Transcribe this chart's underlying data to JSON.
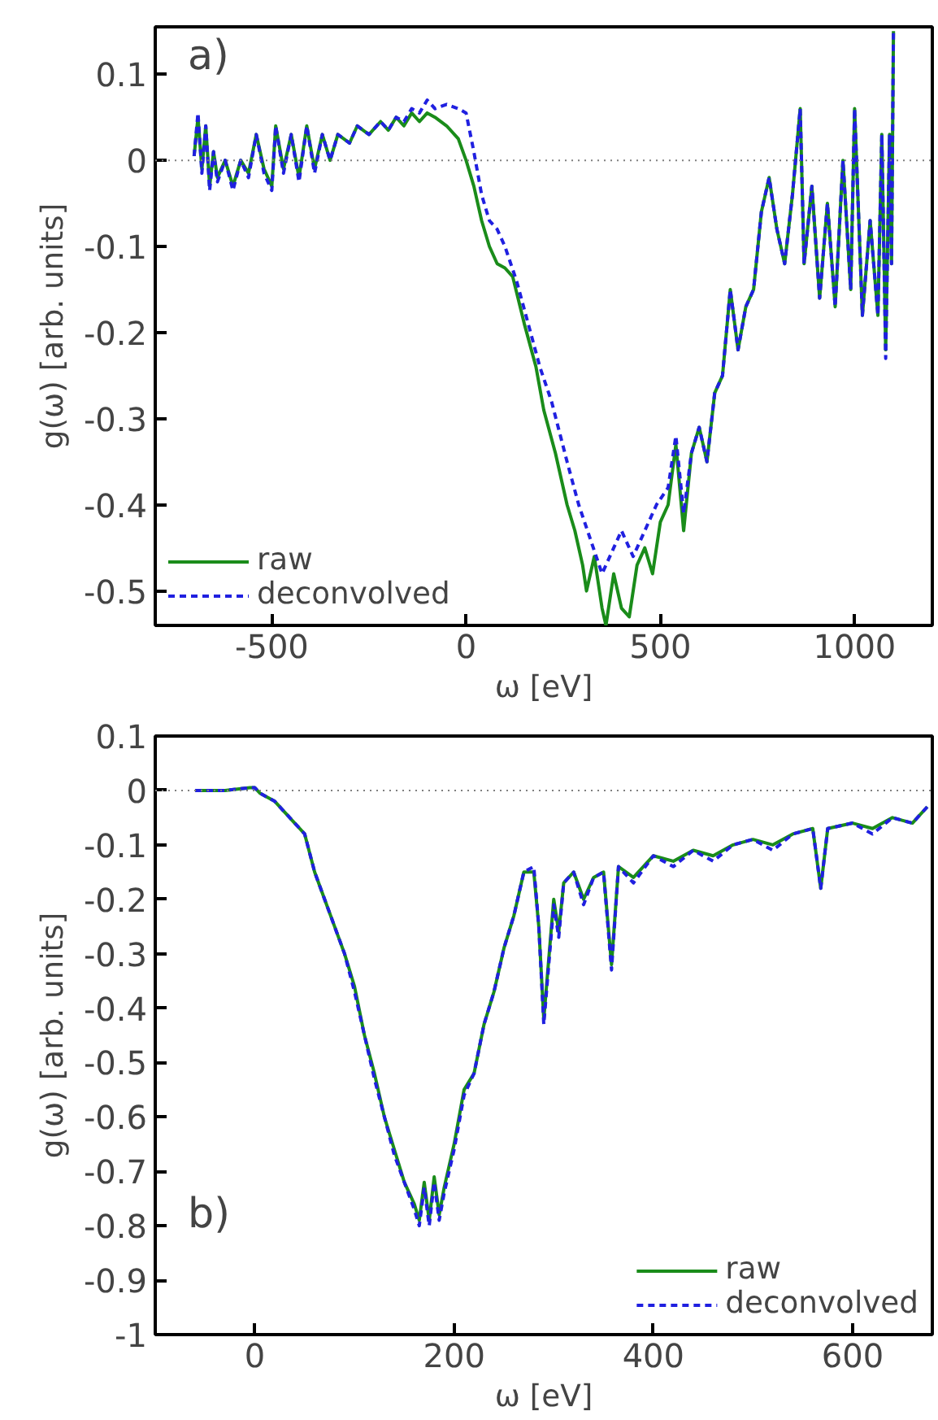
{
  "chart_data": [
    {
      "type": "line",
      "xlabel": "ω [eV]",
      "ylabel": "g(ω) [arb. units]",
      "annotations": [
        "a)"
      ],
      "xlim": [
        -800,
        1200
      ],
      "ylim": [
        -0.54,
        0.155
      ],
      "xticks": [
        -500,
        0,
        500,
        1000
      ],
      "yticks": [
        -0.5,
        -0.4,
        -0.3,
        -0.2,
        -0.1,
        0,
        0.1
      ],
      "grid": false,
      "legend": "bottom left",
      "marker": "none",
      "ref_lines": [
        {
          "axis": "y",
          "value": 0,
          "label": null,
          "color": "#808080",
          "line_style": "dotted"
        }
      ],
      "series": [
        {
          "name": "raw",
          "color": "#1a8c1a",
          "line_style": "solid",
          "x": [
            -700,
            -690,
            -680,
            -670,
            -660,
            -650,
            -640,
            -620,
            -600,
            -580,
            -560,
            -540,
            -520,
            -500,
            -490,
            -470,
            -450,
            -430,
            -410,
            -390,
            -370,
            -350,
            -330,
            -300,
            -280,
            -250,
            -220,
            -200,
            -180,
            -160,
            -140,
            -120,
            -100,
            -80,
            -50,
            -20,
            0,
            20,
            40,
            60,
            80,
            100,
            120,
            150,
            180,
            200,
            230,
            260,
            280,
            300,
            310,
            330,
            350,
            360,
            380,
            400,
            420,
            440,
            460,
            480,
            500,
            520,
            540,
            560,
            580,
            600,
            620,
            640,
            660,
            680,
            700,
            720,
            740,
            760,
            780,
            800,
            820,
            840,
            860,
            870,
            890,
            910,
            930,
            950,
            970,
            990,
            1000,
            1020,
            1040,
            1060,
            1070,
            1080,
            1090,
            1095,
            1100
          ],
          "values": [
            0.005,
            0.05,
            -0.01,
            0.04,
            -0.03,
            0.01,
            -0.02,
            0.0,
            -0.03,
            0.0,
            -0.015,
            0.03,
            -0.01,
            -0.03,
            0.04,
            -0.01,
            0.03,
            -0.02,
            0.04,
            -0.01,
            0.03,
            0.0,
            0.03,
            0.02,
            0.04,
            0.03,
            0.045,
            0.035,
            0.05,
            0.04,
            0.055,
            0.045,
            0.055,
            0.05,
            0.04,
            0.025,
            0.0,
            -0.03,
            -0.07,
            -0.1,
            -0.12,
            -0.125,
            -0.135,
            -0.19,
            -0.24,
            -0.29,
            -0.34,
            -0.4,
            -0.43,
            -0.47,
            -0.5,
            -0.46,
            -0.52,
            -0.54,
            -0.48,
            -0.52,
            -0.53,
            -0.47,
            -0.45,
            -0.48,
            -0.42,
            -0.4,
            -0.33,
            -0.43,
            -0.34,
            -0.31,
            -0.35,
            -0.27,
            -0.25,
            -0.15,
            -0.22,
            -0.17,
            -0.15,
            -0.06,
            -0.02,
            -0.08,
            -0.12,
            -0.04,
            0.06,
            -0.12,
            -0.03,
            -0.16,
            -0.05,
            -0.17,
            0.0,
            -0.15,
            0.06,
            -0.18,
            -0.07,
            -0.18,
            0.03,
            -0.22,
            0.03,
            -0.12,
            0.15
          ]
        },
        {
          "name": "deconvolved",
          "color": "#2020e0",
          "line_style": "dashed",
          "x": [
            -700,
            -690,
            -680,
            -670,
            -660,
            -650,
            -640,
            -620,
            -600,
            -580,
            -560,
            -540,
            -520,
            -500,
            -490,
            -470,
            -450,
            -430,
            -410,
            -390,
            -370,
            -350,
            -330,
            -300,
            -280,
            -250,
            -220,
            -200,
            -180,
            -160,
            -140,
            -120,
            -100,
            -80,
            -50,
            -20,
            0,
            20,
            40,
            60,
            80,
            100,
            130,
            160,
            190,
            220,
            260,
            290,
            320,
            350,
            380,
            400,
            430,
            460,
            490,
            520,
            540,
            560,
            580,
            600,
            620,
            640,
            660,
            680,
            700,
            720,
            740,
            760,
            780,
            800,
            820,
            840,
            860,
            870,
            890,
            910,
            930,
            950,
            970,
            990,
            1000,
            1020,
            1040,
            1060,
            1070,
            1080,
            1090,
            1095,
            1100
          ],
          "values": [
            0.005,
            0.055,
            -0.015,
            0.04,
            -0.035,
            0.01,
            -0.025,
            0.0,
            -0.035,
            0.0,
            -0.02,
            0.03,
            -0.015,
            -0.035,
            0.04,
            -0.015,
            0.03,
            -0.025,
            0.04,
            -0.015,
            0.03,
            0.0,
            0.03,
            0.02,
            0.04,
            0.03,
            0.045,
            0.035,
            0.05,
            0.045,
            0.06,
            0.055,
            0.07,
            0.06,
            0.065,
            0.06,
            0.055,
            0.01,
            -0.04,
            -0.07,
            -0.08,
            -0.1,
            -0.14,
            -0.19,
            -0.24,
            -0.28,
            -0.35,
            -0.4,
            -0.44,
            -0.48,
            -0.45,
            -0.43,
            -0.46,
            -0.43,
            -0.4,
            -0.38,
            -0.32,
            -0.41,
            -0.34,
            -0.31,
            -0.35,
            -0.27,
            -0.25,
            -0.15,
            -0.22,
            -0.17,
            -0.15,
            -0.06,
            -0.02,
            -0.08,
            -0.12,
            -0.04,
            0.06,
            -0.12,
            -0.03,
            -0.16,
            -0.05,
            -0.17,
            0.0,
            -0.15,
            0.06,
            -0.18,
            -0.07,
            -0.18,
            0.03,
            -0.23,
            0.03,
            -0.12,
            0.15
          ]
        }
      ]
    },
    {
      "type": "line",
      "xlabel": "ω [eV]",
      "ylabel": "g(ω) [arb. units]",
      "annotations": [
        "b)"
      ],
      "xlim": [
        -100,
        680
      ],
      "ylim": [
        -1,
        0.1
      ],
      "xticks": [
        0,
        200,
        400,
        600
      ],
      "yticks": [
        -1,
        -0.9,
        -0.8,
        -0.7,
        -0.6,
        -0.5,
        -0.4,
        -0.3,
        -0.2,
        -0.1,
        0,
        0.1
      ],
      "grid": false,
      "legend": "bottom right",
      "marker": "none",
      "ref_lines": [
        {
          "axis": "y",
          "value": 0,
          "label": null,
          "color": "#808080",
          "line_style": "dotted"
        }
      ],
      "series": [
        {
          "name": "raw",
          "color": "#1a8c1a",
          "line_style": "solid",
          "x": [
            -60,
            -30,
            -5,
            0,
            5,
            20,
            40,
            50,
            60,
            70,
            80,
            90,
            100,
            110,
            120,
            130,
            140,
            150,
            160,
            165,
            170,
            175,
            180,
            185,
            190,
            200,
            210,
            220,
            230,
            240,
            250,
            260,
            270,
            280,
            285,
            290,
            300,
            305,
            310,
            320,
            330,
            340,
            350,
            358,
            365,
            380,
            400,
            420,
            440,
            460,
            480,
            500,
            520,
            540,
            560,
            568,
            575,
            600,
            620,
            640,
            660,
            675
          ],
          "values": [
            0.0,
            0.0,
            0.005,
            0.005,
            -0.005,
            -0.02,
            -0.06,
            -0.08,
            -0.15,
            -0.2,
            -0.25,
            -0.3,
            -0.36,
            -0.45,
            -0.52,
            -0.6,
            -0.66,
            -0.72,
            -0.76,
            -0.79,
            -0.72,
            -0.79,
            -0.71,
            -0.78,
            -0.73,
            -0.65,
            -0.55,
            -0.52,
            -0.43,
            -0.37,
            -0.29,
            -0.23,
            -0.15,
            -0.15,
            -0.25,
            -0.42,
            -0.2,
            -0.26,
            -0.17,
            -0.15,
            -0.2,
            -0.16,
            -0.15,
            -0.32,
            -0.14,
            -0.16,
            -0.12,
            -0.13,
            -0.11,
            -0.12,
            -0.1,
            -0.09,
            -0.1,
            -0.08,
            -0.07,
            -0.18,
            -0.07,
            -0.06,
            -0.07,
            -0.05,
            -0.06,
            -0.03
          ]
        },
        {
          "name": "deconvolved",
          "color": "#2020e0",
          "line_style": "dashed",
          "x": [
            -60,
            -30,
            -5,
            0,
            5,
            20,
            40,
            50,
            60,
            70,
            80,
            90,
            100,
            110,
            120,
            130,
            140,
            150,
            160,
            165,
            170,
            175,
            180,
            185,
            190,
            200,
            210,
            220,
            230,
            240,
            250,
            260,
            270,
            280,
            285,
            290,
            300,
            305,
            310,
            320,
            330,
            340,
            350,
            358,
            365,
            380,
            400,
            420,
            440,
            460,
            480,
            500,
            520,
            540,
            560,
            568,
            575,
            600,
            620,
            640,
            660,
            675
          ],
          "values": [
            0.0,
            0.0,
            0.005,
            0.005,
            -0.005,
            -0.02,
            -0.06,
            -0.08,
            -0.15,
            -0.2,
            -0.25,
            -0.3,
            -0.37,
            -0.45,
            -0.53,
            -0.6,
            -0.67,
            -0.72,
            -0.77,
            -0.8,
            -0.73,
            -0.8,
            -0.72,
            -0.79,
            -0.74,
            -0.66,
            -0.56,
            -0.52,
            -0.43,
            -0.37,
            -0.29,
            -0.23,
            -0.15,
            -0.14,
            -0.25,
            -0.43,
            -0.21,
            -0.27,
            -0.17,
            -0.15,
            -0.21,
            -0.16,
            -0.15,
            -0.33,
            -0.14,
            -0.17,
            -0.12,
            -0.14,
            -0.11,
            -0.13,
            -0.1,
            -0.09,
            -0.11,
            -0.08,
            -0.07,
            -0.18,
            -0.07,
            -0.06,
            -0.08,
            -0.05,
            -0.06,
            -0.03
          ]
        }
      ]
    }
  ]
}
